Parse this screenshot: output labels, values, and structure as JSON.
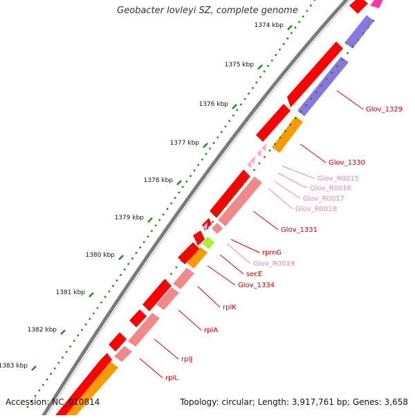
{
  "title": "Geobacter lovleyi SZ, complete genome",
  "footer": {
    "accession": "Accession: NC_010814",
    "summary": "Topology: circular; Length: 3,917,761 bp; Genes: 3,658"
  },
  "colors": {
    "backbone": "#777777",
    "cds_forward": "#ff0000",
    "rrna_trna": "#ffaacc",
    "cds_reverse_pink": "#f08a8a",
    "cds_orange": "#ff9900",
    "cds_purple": "#8877dd",
    "cds_magenta": "#ff33aa",
    "secE_green": "#aaee33",
    "ticks": "#1a8a1a",
    "label_red": "#dd0000",
    "label_pink": "#ee88aa"
  },
  "ticks": [
    {
      "label": "1374 kbp"
    },
    {
      "label": "1375 kbp"
    },
    {
      "label": "1376 kbp"
    },
    {
      "label": "1377 kbp"
    },
    {
      "label": "1378 kbp"
    },
    {
      "label": "1379 kbp"
    },
    {
      "label": "1380 kbp"
    },
    {
      "label": "1381 kbp"
    },
    {
      "label": "1382 kbp"
    },
    {
      "label": "1383 kbp"
    }
  ],
  "feature_labels": [
    {
      "text": "Glov_1329",
      "color": "red"
    },
    {
      "text": "Glov_1330",
      "color": "red"
    },
    {
      "text": "Glov_R0015",
      "color": "pink"
    },
    {
      "text": "Glov_R0016",
      "color": "pink"
    },
    {
      "text": "Glov_R0017",
      "color": "pink"
    },
    {
      "text": "Glov_R0018",
      "color": "pink"
    },
    {
      "text": "Glov_1331",
      "color": "red"
    },
    {
      "text": "rpmG",
      "color": "red"
    },
    {
      "text": "Glov_R0019",
      "color": "pink"
    },
    {
      "text": "secE",
      "color": "red"
    },
    {
      "text": "Glov_1334",
      "color": "red"
    },
    {
      "text": "rplK",
      "color": "red"
    },
    {
      "text": "rplA",
      "color": "red"
    },
    {
      "text": "rplJ",
      "color": "red"
    },
    {
      "text": "rplL",
      "color": "red"
    }
  ]
}
